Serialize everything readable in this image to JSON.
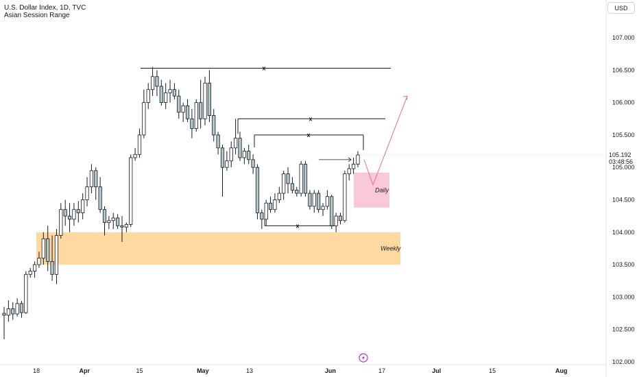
{
  "header": {
    "title": "U.S. Dollar Index, 1D, TVC",
    "subtitle": "Asian Session Range",
    "currency": "USD"
  },
  "last_price": {
    "price": "105.192",
    "countdown": "03:48:56",
    "value": 105.192
  },
  "colors": {
    "up_body": "#ffffff",
    "down_body": "#b2c8c8",
    "wick": "#131722",
    "weekly_zone": "#ffcc80",
    "daily_zone": "#f8bbd0",
    "arrow": "#e57373"
  },
  "icons": {
    "flash": "lightning-icon"
  },
  "chart_data": {
    "type": "candlestick",
    "title": "",
    "xlabel": "",
    "ylabel": "",
    "ylim": [
      102.0,
      107.35
    ],
    "y_ticks": [
      "102.000",
      "102.500",
      "103.000",
      "103.500",
      "104.000",
      "104.500",
      "105.000",
      "105.500",
      "106.000",
      "106.500",
      "107.000"
    ],
    "y_tick_values": [
      102.0,
      102.5,
      103.0,
      103.5,
      104.0,
      104.5,
      105.0,
      105.5,
      106.0,
      106.5,
      107.0
    ],
    "x_ticks": [
      {
        "label": "18",
        "bold": false
      },
      {
        "label": "Apr",
        "bold": true
      },
      {
        "label": "15",
        "bold": false
      },
      {
        "label": "May",
        "bold": true
      },
      {
        "label": "13",
        "bold": false
      },
      {
        "label": "Jun",
        "bold": true
      },
      {
        "label": "17",
        "bold": false
      },
      {
        "label": "Jul",
        "bold": true
      },
      {
        "label": "15",
        "bold": false
      },
      {
        "label": "Aug",
        "bold": true
      }
    ],
    "candles": [
      [
        102.75,
        102.85,
        102.35,
        102.72
      ],
      [
        102.72,
        102.95,
        102.62,
        102.82
      ],
      [
        102.82,
        102.92,
        102.65,
        102.74
      ],
      [
        102.74,
        102.98,
        102.7,
        102.9
      ],
      [
        102.9,
        102.94,
        102.68,
        102.76
      ],
      [
        102.76,
        103.4,
        102.74,
        103.35
      ],
      [
        103.35,
        103.45,
        103.3,
        103.4
      ],
      [
        103.4,
        103.55,
        103.3,
        103.5
      ],
      [
        103.5,
        103.7,
        103.45,
        103.6
      ],
      [
        103.6,
        104.0,
        103.5,
        103.9
      ],
      [
        103.9,
        104.1,
        103.4,
        103.55
      ],
      [
        103.55,
        103.95,
        103.25,
        103.35
      ],
      [
        103.35,
        104.05,
        103.2,
        103.95
      ],
      [
        103.95,
        104.45,
        103.9,
        104.35
      ],
      [
        104.35,
        104.5,
        104.1,
        104.25
      ],
      [
        104.25,
        104.45,
        104.0,
        104.2
      ],
      [
        104.2,
        104.45,
        104.1,
        104.35
      ],
      [
        104.35,
        104.48,
        104.15,
        104.3
      ],
      [
        104.3,
        104.6,
        104.2,
        104.5
      ],
      [
        104.5,
        104.85,
        104.4,
        104.7
      ],
      [
        104.7,
        105.05,
        104.6,
        104.95
      ],
      [
        104.95,
        105.0,
        104.5,
        104.7
      ],
      [
        104.7,
        104.85,
        104.3,
        104.35
      ],
      [
        104.35,
        104.4,
        103.95,
        104.15
      ],
      [
        104.15,
        104.25,
        104.05,
        104.18
      ],
      [
        104.18,
        104.3,
        104.05,
        104.22
      ],
      [
        104.22,
        104.28,
        104.05,
        104.1
      ],
      [
        104.1,
        104.25,
        103.85,
        104.08
      ],
      [
        104.08,
        104.15,
        104.0,
        104.12
      ],
      [
        104.12,
        105.2,
        104.08,
        105.15
      ],
      [
        105.15,
        105.3,
        105.1,
        105.2
      ],
      [
        105.2,
        105.6,
        105.15,
        105.5
      ],
      [
        105.5,
        106.2,
        105.45,
        106.0
      ],
      [
        106.0,
        106.3,
        105.9,
        106.2
      ],
      [
        106.2,
        106.55,
        106.1,
        106.4
      ],
      [
        106.4,
        106.5,
        106.1,
        106.25
      ],
      [
        106.25,
        106.35,
        105.95,
        106.0
      ],
      [
        106.0,
        106.3,
        105.9,
        106.15
      ],
      [
        106.15,
        106.35,
        106.0,
        106.2
      ],
      [
        106.2,
        106.3,
        106.05,
        106.1
      ],
      [
        106.1,
        106.2,
        105.75,
        105.85
      ],
      [
        105.85,
        106.0,
        105.7,
        105.95
      ],
      [
        105.95,
        106.05,
        105.7,
        105.75
      ],
      [
        105.75,
        105.9,
        105.45,
        105.6
      ],
      [
        105.6,
        106.05,
        105.55,
        106.0
      ],
      [
        106.0,
        106.35,
        105.6,
        105.75
      ],
      [
        105.75,
        106.4,
        105.65,
        106.3
      ],
      [
        106.3,
        106.5,
        105.7,
        105.8
      ],
      [
        105.8,
        105.9,
        105.4,
        105.5
      ],
      [
        105.5,
        105.55,
        105.2,
        105.3
      ],
      [
        105.3,
        105.35,
        104.55,
        105.0
      ],
      [
        105.0,
        105.25,
        104.95,
        105.1
      ],
      [
        105.1,
        105.4,
        105.0,
        105.3
      ],
      [
        105.3,
        105.75,
        105.2,
        105.45
      ],
      [
        105.45,
        105.55,
        105.1,
        105.15
      ],
      [
        105.15,
        105.3,
        105.05,
        105.25
      ],
      [
        105.25,
        105.35,
        105.05,
        105.12
      ],
      [
        105.12,
        105.2,
        104.9,
        105.0
      ],
      [
        105.0,
        105.05,
        104.2,
        104.3
      ],
      [
        104.3,
        104.35,
        104.05,
        104.2
      ],
      [
        104.2,
        104.5,
        104.1,
        104.45
      ],
      [
        104.45,
        104.55,
        104.3,
        104.35
      ],
      [
        104.35,
        104.6,
        104.3,
        104.5
      ],
      [
        104.5,
        104.7,
        104.45,
        104.6
      ],
      [
        104.6,
        104.95,
        104.5,
        104.9
      ],
      [
        104.9,
        105.0,
        104.6,
        104.75
      ],
      [
        104.75,
        104.85,
        104.6,
        104.65
      ],
      [
        104.65,
        104.7,
        104.55,
        104.6
      ],
      [
        104.6,
        105.1,
        104.55,
        105.05
      ],
      [
        105.05,
        105.1,
        104.55,
        104.6
      ],
      [
        104.6,
        104.65,
        104.35,
        104.4
      ],
      [
        104.4,
        104.65,
        104.3,
        104.6
      ],
      [
        104.6,
        104.65,
        104.3,
        104.35
      ],
      [
        104.35,
        104.45,
        104.25,
        104.4
      ],
      [
        104.4,
        104.65,
        104.35,
        104.55
      ],
      [
        104.55,
        104.58,
        104.05,
        104.1
      ],
      [
        104.1,
        104.3,
        104.0,
        104.25
      ],
      [
        104.25,
        104.3,
        104.12,
        104.18
      ],
      [
        104.18,
        104.95,
        104.15,
        104.9
      ],
      [
        104.9,
        105.05,
        104.8,
        104.98
      ],
      [
        104.98,
        105.15,
        104.9,
        105.05
      ],
      [
        105.05,
        105.25,
        105.0,
        105.192
      ]
    ],
    "annotations": [
      {
        "type": "level",
        "label": "x",
        "price": 106.53
      },
      {
        "type": "level",
        "label": "x",
        "price": 105.75
      },
      {
        "type": "level",
        "label": "x",
        "price": 105.5
      },
      {
        "type": "level",
        "label": "x",
        "price": 104.1
      },
      {
        "type": "zone",
        "label": "Weekly",
        "range": [
          103.5,
          104.0
        ]
      },
      {
        "type": "zone",
        "label": "Daily",
        "range": [
          104.38,
          104.92
        ]
      },
      {
        "type": "projection",
        "path": [
          105.12,
          104.73,
          106.1
        ]
      }
    ]
  }
}
